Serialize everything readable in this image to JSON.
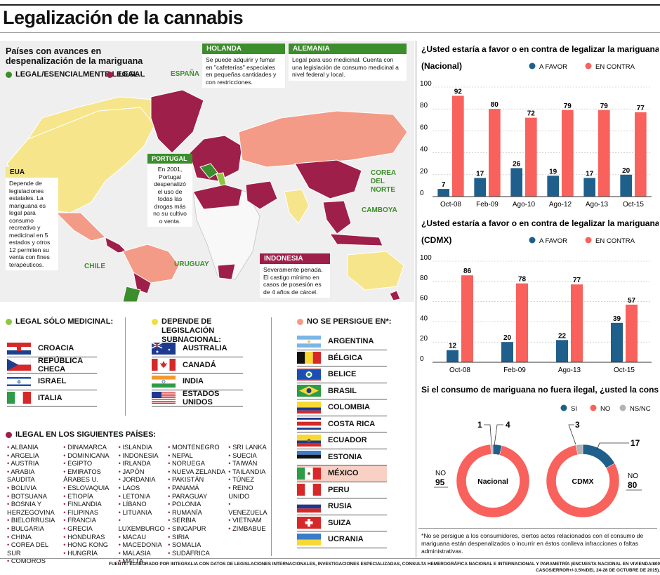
{
  "header": {
    "title": "Legalización de la cannabis"
  },
  "map": {
    "heading": "Países con avances en despenalización de la mariguana",
    "legend": [
      {
        "label": "LEGAL/ESENCIALMENTE LEGAL",
        "color": "#3c8d2b"
      },
      {
        "label": "ILEGAL",
        "color": "#9e1f4a"
      }
    ],
    "labels": {
      "espana": "ESPAÑA",
      "chile": "CHILE",
      "uruguay": "URUGUAY",
      "corea": "COREA\nDEL\nNORTE",
      "camboya": "CAMBOYA"
    },
    "callouts": {
      "holanda": {
        "title": "HOLANDA",
        "text": "Se puede adquirir y fumar en \"cafeterías\" especiales en pequeñas cantidades y con restricciones."
      },
      "alemania": {
        "title": "ALEMANIA",
        "text": "Legal para uso medicinal. Cuenta con una legislación de consumo medicinal a nivel federal y local."
      },
      "portugal": {
        "title": "PORTUGAL",
        "text": "En 2001, Portugal despenalizó el uso de todas las drogas más no su cultivo o venta."
      },
      "eua": {
        "title": "EUA",
        "text": "Depende de legislaciones estatales. La mariguana es legal para consumo recreativo y medicinal en 5 estados y otros 12 permiten su venta con fines terapéuticos."
      },
      "indonesia": {
        "title": "INDONESIA",
        "text": "Severamente penada. El castigo mínimo en casos de posesión es de 4 años de cárcel."
      }
    }
  },
  "medicinal": {
    "heading": "LEGAL SÓLO MEDICINAL:",
    "items": [
      "CROACIA",
      "REPÚBLICA CHECA",
      "ISRAEL",
      "ITALIA"
    ]
  },
  "subnacional": {
    "heading": "DEPENDE DE LEGISLACIÓN SUBNACIONAL:",
    "items": [
      "AUSTRALIA",
      "CANADÁ",
      "INDIA",
      "ESTADOS UNIDOS"
    ]
  },
  "nopersigue": {
    "heading": "NO SE PERSIGUE EN*:",
    "items": [
      "ARGENTINA",
      "BÉLGICA",
      "BELICE",
      "BRASIL",
      "COLOMBIA",
      "COSTA RICA",
      "ECUADOR",
      "ESTONIA",
      "MÉXICO",
      "PERU",
      "RUSIA",
      "SUIZA",
      "UCRANIA"
    ],
    "highlight": "MÉXICO"
  },
  "ilegal": {
    "heading": "ILEGAL EN LOS SIGUIENTES PAÍSES:",
    "columns": [
      [
        "ALBANIA",
        "ARGELIA",
        "AUSTRIA",
        "ARABIA SAUDITA",
        "BOLIVIA",
        "BOTSUANA",
        "BOSNIA Y HERZEGOVINA",
        "BIELORRUSIA",
        "BULGARIA",
        "CHINA",
        "COREA DEL SUR",
        "COMOROS"
      ],
      [
        "DINAMARCA",
        "DOMINICANA",
        "EGIPTO",
        "EMIRATOS ÁRABES U.",
        "ESLOVAQUIA",
        "ETIOPÍA",
        "FINLANDIA",
        "FILIPINAS",
        "FRANCIA",
        "GRECIA",
        "HONDURAS",
        "HONG KONG",
        "HUNGRÍA"
      ],
      [
        "ISLANDIA",
        "INDONESIA",
        "IRLANDA",
        "JAPÓN",
        "JORDANIA",
        "LAOS",
        "LETONIA",
        "LÍBANO",
        "LITUANIA",
        "LUXEMBURGO",
        "MACAU",
        "MACEDONIA",
        "MALASIA",
        "MALTA"
      ],
      [
        "MONTENEGRO",
        "NEPAL",
        "NORUEGA",
        "NUEVA ZELANDA",
        "PAKISTÁN",
        "PANAMÁ",
        "PARAGUAY",
        "POLONIA",
        "RUMANÍA",
        "SERBIA",
        "SINGAPUR",
        "SIRIA",
        "SOMALIA",
        "SUDÁFRICA"
      ],
      [
        "SRI LANKA",
        "SUECIA",
        "TAIWÁN",
        "TAILANDIA",
        "TÚNEZ",
        "REINO UNIDO",
        "VENEZUELA",
        "VIETNAM",
        "ZIMBABUE"
      ]
    ]
  },
  "chart_data": [
    {
      "type": "bar",
      "title": "¿Usted estaría a favor o en contra de legalizar la mariguana?",
      "subtitle": "(Nacional)",
      "categories": [
        "Oct-08",
        "Feb-09",
        "Ago-10",
        "Ago-12",
        "Ago-13",
        "Oct-15"
      ],
      "series": [
        {
          "name": "A FAVOR",
          "color": "#1f5f8b",
          "values": [
            7,
            17,
            26,
            19,
            17,
            20
          ]
        },
        {
          "name": "EN CONTRA",
          "color": "#f8615c",
          "values": [
            92,
            80,
            72,
            79,
            79,
            77
          ]
        }
      ],
      "ylim": [
        0,
        100
      ],
      "yticks": [
        0,
        20,
        40,
        60,
        80,
        100
      ],
      "grid": true,
      "legend": "top"
    },
    {
      "type": "bar",
      "title": "¿Usted estaría a favor o en contra de legalizar la mariguana?",
      "subtitle": "(CDMX)",
      "categories": [
        "Oct-08",
        "Feb-09",
        "Ago-13",
        "Oct-15"
      ],
      "series": [
        {
          "name": "A FAVOR",
          "color": "#1f5f8b",
          "values": [
            12,
            20,
            22,
            39
          ]
        },
        {
          "name": "EN CONTRA",
          "color": "#f8615c",
          "values": [
            86,
            78,
            77,
            57
          ]
        }
      ],
      "ylim": [
        0,
        100
      ],
      "yticks": [
        0,
        20,
        40,
        60,
        80,
        100
      ],
      "grid": true,
      "legend": "top"
    },
    {
      "type": "pie",
      "title": "Si el consumo de mariguana no fuera ilegal, ¿usted la consumiría?",
      "legend_entries": [
        {
          "name": "SI",
          "color": "#1f5f8b"
        },
        {
          "name": "NO",
          "color": "#f8615c"
        },
        {
          "name": "NS/NC",
          "color": "#b3b3b3"
        }
      ],
      "charts": [
        {
          "name": "Nacional",
          "values": {
            "SI": 4,
            "NO": 95,
            "NS/NC": 1
          }
        },
        {
          "name": "CDMX",
          "values": {
            "SI": 17,
            "NO": 80,
            "NS/NC": 3
          }
        }
      ],
      "labels": {
        "no": "NO"
      }
    }
  ],
  "footnote": "*No se persigue a los consumidores, ciertos actos relacionados con el consumo de mariguana están despenalizados o incurrir en éstos conlleva infracciones o faltas administrativas.",
  "source": "FUENTE: ELABORADO POR INTEGRALIA CON DATOS DE LEGISLACIONES INTERNACIONALES, INVESTIGACIONES ESPECIALIZADAS, CONSULTA HEMEROGRÁFICA NACIONAL E INTERNACIONAL Y PARAMETRÍA (ENCUESTA NACIONAL EN VIVIENDA/800 CASOS/ERROR+/-3.5%/DEL 24-28 DE OCTUBRE DE 2015)."
}
